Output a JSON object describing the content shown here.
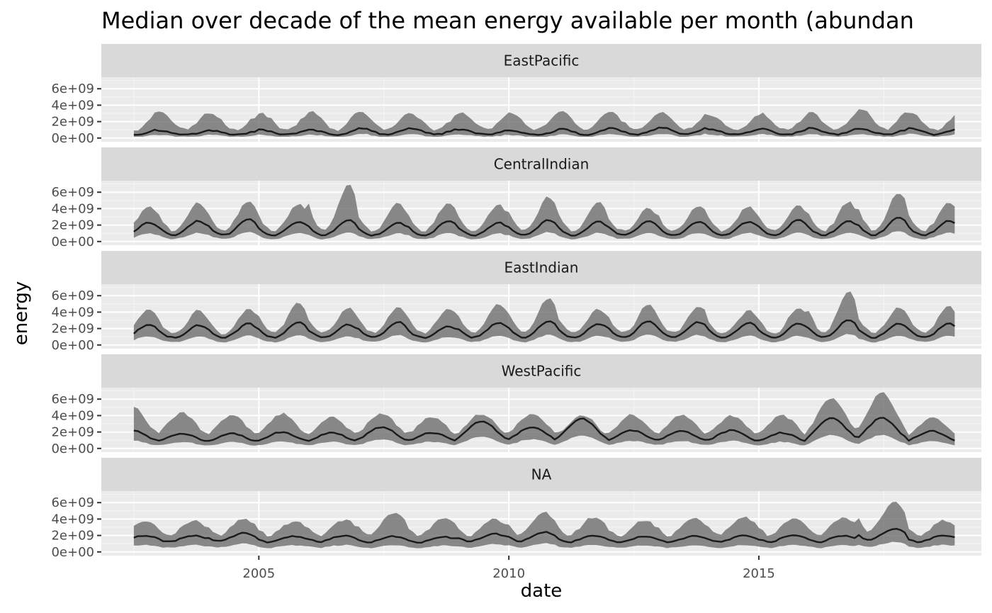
{
  "chart_data": {
    "type": "line",
    "title": "Median over decade of the mean energy available per month (abundan",
    "xlabel": "date",
    "ylabel": "energy",
    "xlim": [
      2001.85,
      2019.45
    ],
    "ylim": [
      -450000000.0,
      7400000000.0
    ],
    "x_ticks": [
      {
        "value": 2005,
        "label": "2005"
      },
      {
        "value": 2010,
        "label": "2010"
      },
      {
        "value": 2015,
        "label": "2015"
      }
    ],
    "y_ticks": [
      {
        "value": 0,
        "label": "0e+00"
      },
      {
        "value": 2000000000,
        "label": "2e+09"
      },
      {
        "value": 4000000000,
        "label": "4e+09"
      },
      {
        "value": 6000000000,
        "label": "6e+09"
      }
    ],
    "grid": true,
    "legend": "none",
    "colors": {
      "panel_background": "#ebebeb",
      "strip_background": "#d9d9d9",
      "grid_major": "#ffffff",
      "ribbon": "#666666",
      "line": "#1a1a1a"
    },
    "panels": [
      {
        "name": "EastPacific",
        "peak_months": [
          1,
          2
        ],
        "base_low": 350000000.0,
        "peak_median": [
          1100000000.0,
          900000000.0,
          900000000.0,
          1000000000.0,
          1000000000.0,
          1200000000.0,
          1200000000.0,
          1000000000.0,
          900000000.0,
          1100000000.0,
          1200000000.0,
          1300000000.0,
          1000000000.0,
          1100000000.0,
          1200000000.0,
          1100000000.0,
          1200000000.0
        ],
        "peak_upper": [
          3000000000.0,
          2800000000.0,
          2500000000.0,
          2600000000.0,
          2700000000.0,
          2700000000.0,
          2500000000.0,
          2600000000.0,
          2600000000.0,
          2800000000.0,
          2600000000.0,
          2700000000.0,
          2300000000.0,
          2500000000.0,
          2700000000.0,
          3100000000.0,
          2600000000.0
        ],
        "width": 2.6
      },
      {
        "name": "CentralIndian",
        "peak_months": [
          10,
          11
        ],
        "base_low": 650000000.0,
        "peak_median": [
          2300000000.0,
          2500000000.0,
          2700000000.0,
          2400000000.0,
          2600000000.0,
          2300000000.0,
          2500000000.0,
          2300000000.0,
          2600000000.0,
          2400000000.0,
          2500000000.0,
          2400000000.0,
          2400000000.0,
          2600000000.0,
          2500000000.0,
          2900000000.0,
          2500000000.0
        ],
        "peak_upper": [
          3800000000.0,
          4300000000.0,
          4500000000.0,
          4200000000.0,
          6400000000.0,
          4200000000.0,
          4300000000.0,
          4100000000.0,
          5000000000.0,
          4200000000.0,
          3600000000.0,
          3900000000.0,
          3800000000.0,
          4000000000.0,
          4400000000.0,
          5500000000.0,
          4400000000.0
        ],
        "width": 2.4
      },
      {
        "name": "EastIndian",
        "peak_months": [
          10,
          11
        ],
        "base_low": 800000000.0,
        "peak_median": [
          2500000000.0,
          2400000000.0,
          2600000000.0,
          2800000000.0,
          2500000000.0,
          2800000000.0,
          2300000000.0,
          2700000000.0,
          2900000000.0,
          2600000000.0,
          2900000000.0,
          2800000000.0,
          2700000000.0,
          2600000000.0,
          3000000000.0,
          2600000000.0,
          2600000000.0
        ],
        "peak_upper": [
          3900000000.0,
          3800000000.0,
          3900000000.0,
          4700000000.0,
          4100000000.0,
          4200000000.0,
          4100000000.0,
          4500000000.0,
          5300000000.0,
          4000000000.0,
          4500000000.0,
          4300000000.0,
          3700000000.0,
          4100000000.0,
          6000000000.0,
          4100000000.0,
          4300000000.0
        ],
        "width": 2.4
      },
      {
        "name": "WestPacific",
        "peak_months": [
          6,
          7
        ],
        "base_low": 600000000.0,
        "peak_median": [
          2200000000.0,
          1800000000.0,
          1800000000.0,
          2000000000.0,
          1900000000.0,
          2600000000.0,
          1900000000.0,
          3300000000.0,
          2600000000.0,
          3600000000.0,
          2200000000.0,
          2100000000.0,
          2200000000.0,
          1900000000.0,
          3700000000.0,
          3700000000.0,
          2100000000.0
        ],
        "peak_upper": [
          4600000000.0,
          3900000000.0,
          3600000000.0,
          3800000000.0,
          3300000000.0,
          3800000000.0,
          3400000000.0,
          3800000000.0,
          3800000000.0,
          3600000000.0,
          3600000000.0,
          3600000000.0,
          3500000000.0,
          3600000000.0,
          5600000000.0,
          6300000000.0,
          3300000000.0
        ],
        "width": 3.4
      },
      {
        "name": "NA",
        "peak_months": [
          9,
          10
        ],
        "base_low": 1000000000.0,
        "peak_median": [
          2000000000.0,
          2000000000.0,
          2300000000.0,
          1900000000.0,
          2000000000.0,
          1900000000.0,
          1800000000.0,
          2200000000.0,
          2400000000.0,
          2000000000.0,
          1900000000.0,
          1900000000.0,
          2000000000.0,
          2000000000.0,
          2000000000.0,
          2800000000.0,
          2000000000.0
        ],
        "peak_upper": [
          3300000000.0,
          3400000000.0,
          3600000000.0,
          3300000000.0,
          3500000000.0,
          4300000000.0,
          3600000000.0,
          3600000000.0,
          4300000000.0,
          3800000000.0,
          3400000000.0,
          3600000000.0,
          3800000000.0,
          3600000000.0,
          3800000000.0,
          5600000000.0,
          3400000000.0
        ],
        "width": 3.2
      }
    ],
    "x_start": 2002.5,
    "x_end": 2018.95
  }
}
